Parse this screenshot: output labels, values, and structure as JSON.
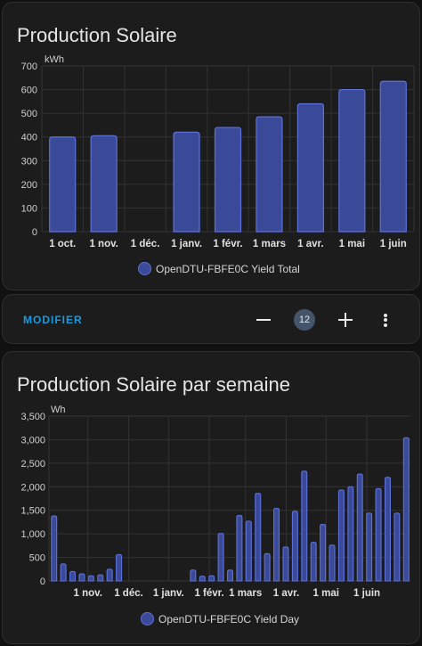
{
  "cards": {
    "monthly": {
      "title": "Production Solaire",
      "legend_label": "OpenDTU-FBFE0C Yield Total"
    },
    "controls": {
      "modifier_label": "MODIFIER",
      "counter_value": "12",
      "minus_icon": "minus-icon",
      "plus_icon": "plus-icon",
      "menu_icon": "dots-vertical-icon"
    },
    "weekly": {
      "title": "Production Solaire par semaine",
      "legend_label": "OpenDTU-FBFE0C Yield Day"
    }
  },
  "colors": {
    "bar_fill": "#3a4a99",
    "bar_stroke": "#5d71d9",
    "accent": "#1a9ae0",
    "card_bg": "#1c1c1c",
    "grid": "#333333"
  },
  "chart_data": [
    {
      "type": "bar",
      "title": "Production Solaire",
      "ylabel": "kWh",
      "ylim": [
        0,
        700
      ],
      "y_ticks": [
        "0",
        "100",
        "200",
        "300",
        "400",
        "500",
        "600",
        "700"
      ],
      "categories": [
        "1 oct.",
        "1 nov.",
        "1 déc.",
        "1 janv.",
        "1 févr.",
        "1 mars",
        "1 avr.",
        "1 mai",
        "1 juin"
      ],
      "series": [
        {
          "name": "OpenDTU-FBFE0C Yield Total",
          "values": [
            400,
            405,
            null,
            420,
            440,
            485,
            540,
            600,
            635
          ]
        }
      ],
      "grid": true,
      "legend": "bottom"
    },
    {
      "type": "bar",
      "title": "Production Solaire par semaine",
      "ylabel": "Wh",
      "ylim": [
        0,
        3500
      ],
      "y_ticks": [
        "0",
        "500",
        "1,000",
        "1,500",
        "2,000",
        "2,500",
        "3,000",
        "3,500"
      ],
      "x_ticks": [
        "1 nov.",
        "1 déc.",
        "1 janv.",
        "1 févr.",
        "1 mars",
        "1 avr.",
        "1 mai",
        "1 juin"
      ],
      "series": [
        {
          "name": "OpenDTU-FBFE0C Yield Day",
          "values": [
            1380,
            360,
            200,
            150,
            110,
            130,
            250,
            560,
            0,
            0,
            0,
            0,
            0,
            0,
            0,
            230,
            100,
            110,
            1010,
            230,
            1390,
            1270,
            1860,
            580,
            1540,
            720,
            1480,
            2330,
            820,
            1200,
            760,
            1930,
            2000,
            2270,
            1440,
            1960,
            2200,
            1440,
            3040
          ]
        }
      ],
      "grid": true,
      "legend": "bottom"
    }
  ]
}
